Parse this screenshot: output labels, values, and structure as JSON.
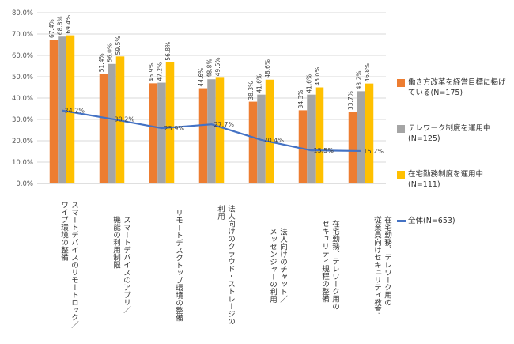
{
  "chart_data": {
    "type": "bar",
    "categories": [
      "スマートデバイスのリモートロック／\nワイプ環境の整備",
      "スマートデバイスのアプリ／\n機能の利用制限",
      "リモートデスクトップ環境の整備",
      "法人向けのクラウド・ストレージの\n利用",
      "法人向けのチャット／\nメッセンジャーの利用",
      "在宅勤務、テレワーク用の\nセキュリティ規程の整備",
      "在宅勤務、テレワーク用の\n従業員向けセキュリティ教育"
    ],
    "series": [
      {
        "name": "働き方改革を経営目標に掲げている(N=175)",
        "type": "bar",
        "color": "#ED7D31",
        "values": [
          67.4,
          51.4,
          46.9,
          44.6,
          38.3,
          34.3,
          33.7
        ],
        "labels": [
          "67.4%",
          "51.4%",
          "46.9%",
          "44.6%",
          "38.3%",
          "34.3%",
          "33.7%"
        ]
      },
      {
        "name": "テレワーク制度を運用中(N=125)",
        "type": "bar",
        "color": "#A5A5A5",
        "values": [
          68.8,
          56.0,
          47.2,
          48.8,
          41.6,
          41.6,
          43.2
        ],
        "labels": [
          "68.8%",
          "56.0%",
          "47.2%",
          "48.8%",
          "41.6%",
          "41.6%",
          "43.2%"
        ]
      },
      {
        "name": "在宅勤務制度を運用中(N=111)",
        "type": "bar",
        "color": "#FFC000",
        "values": [
          69.4,
          59.5,
          56.8,
          49.5,
          48.6,
          45.0,
          46.8
        ],
        "labels": [
          "69.4%",
          "59.5%",
          "56.8%",
          "49.5%",
          "48.6%",
          "45.0%",
          "46.8%"
        ]
      },
      {
        "name": "全体(N=653)",
        "type": "line",
        "color": "#4472C4",
        "values": [
          34.2,
          30.2,
          25.9,
          27.7,
          20.4,
          15.5,
          15.2
        ],
        "labels": [
          "34.2%",
          "30.2%",
          "25.9%",
          "27.7%",
          "20.4%",
          "15.5%",
          "15.2%"
        ]
      }
    ],
    "ylim": [
      0,
      80
    ],
    "yticks": [
      "0.0%",
      "10.0%",
      "20.0%",
      "30.0%",
      "40.0%",
      "50.0%",
      "60.0%",
      "70.0%",
      "80.0%"
    ],
    "grid": true,
    "legend": "right",
    "xlabel": "",
    "ylabel": ""
  }
}
